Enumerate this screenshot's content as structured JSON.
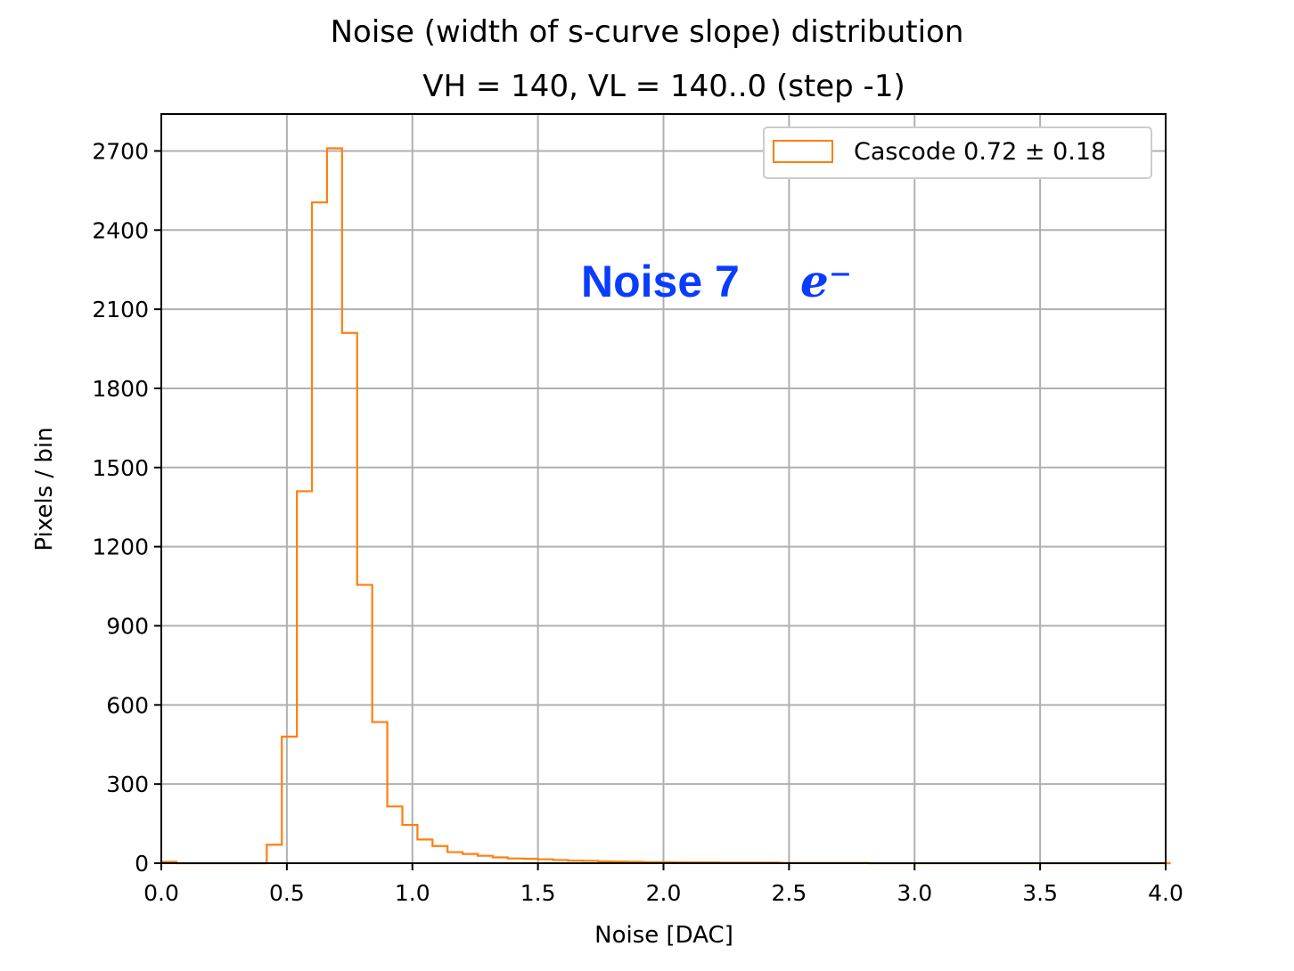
{
  "chart_data": {
    "type": "bar",
    "histtype": "step",
    "title": "Noise (width of s-curve slope) distribution",
    "subtitle": "VH = 140, VL = 140..0 (step -1)",
    "xlabel": "Noise [DAC]",
    "ylabel": "Pixels / bin",
    "xlim": [
      0.0,
      4.0
    ],
    "ylim": [
      0,
      2840
    ],
    "xticks": [
      0.0,
      0.5,
      1.0,
      1.5,
      2.0,
      2.5,
      3.0,
      3.5,
      4.0
    ],
    "xtick_labels": [
      "0.0",
      "0.5",
      "1.0",
      "1.5",
      "2.0",
      "2.5",
      "3.0",
      "3.5",
      "4.0"
    ],
    "yticks": [
      0,
      300,
      600,
      900,
      1200,
      1500,
      1800,
      2100,
      2400,
      2700
    ],
    "ytick_labels": [
      "0",
      "300",
      "600",
      "900",
      "1200",
      "1500",
      "1800",
      "2100",
      "2400",
      "2700"
    ],
    "grid": true,
    "legend_position": "top-right",
    "series": [
      {
        "name": "Cascode 0.72 ± 0.18",
        "color": "#ff7f0e",
        "bin_width": 0.06,
        "bin_edges_start": 0.0,
        "values": [
          5,
          0,
          0,
          0,
          0,
          0,
          0,
          70,
          480,
          1410,
          2505,
          2710,
          2010,
          1055,
          535,
          215,
          145,
          90,
          65,
          42,
          35,
          28,
          22,
          18,
          17,
          15,
          12,
          10,
          9,
          7,
          6,
          5,
          4,
          4,
          3,
          3,
          3,
          2,
          2,
          2,
          2,
          1,
          1,
          1,
          1,
          1,
          1,
          0,
          0,
          0,
          0,
          0,
          0,
          0,
          0,
          0,
          0,
          0,
          0,
          0,
          0,
          0,
          0,
          0,
          0,
          0,
          0
        ]
      }
    ],
    "annotation": {
      "text": "Noise  7",
      "math": "e⁻",
      "color": "#0a3cff"
    }
  }
}
